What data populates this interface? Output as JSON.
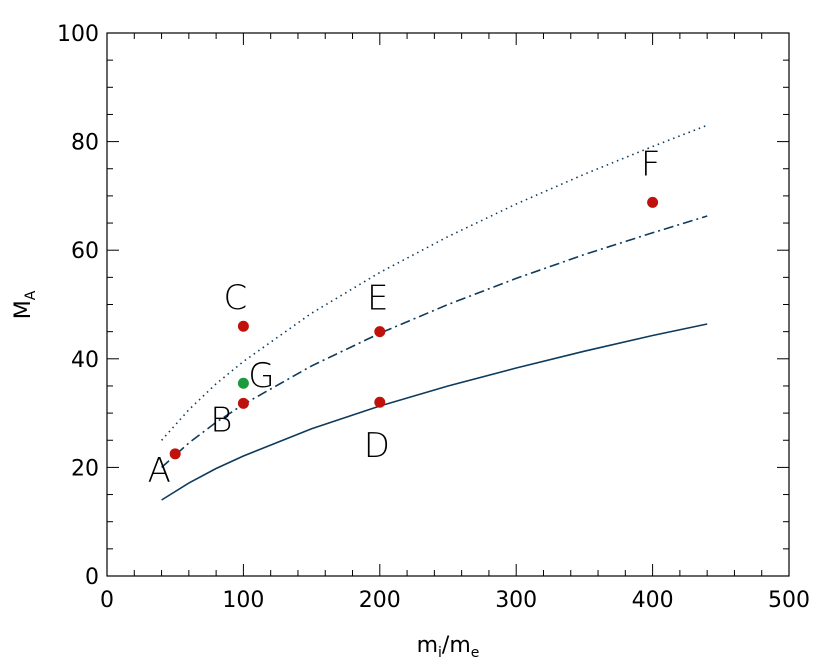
{
  "chart_data": {
    "type": "scatter",
    "title": "",
    "xlabel": {
      "base": "m",
      "sub": "i",
      "sep": "/",
      "base2": "m",
      "sub2": "e"
    },
    "ylabel": {
      "base": "M",
      "sub": "A"
    },
    "xlim": [
      0,
      500
    ],
    "ylim": [
      0,
      100
    ],
    "x_ticks": [
      "0",
      "100",
      "200",
      "300",
      "400",
      "500"
    ],
    "y_ticks": [
      "0",
      "20",
      "40",
      "60",
      "80",
      "100"
    ],
    "grid": false,
    "curves": [
      {
        "style": "solid",
        "color": "#0e3a5c",
        "x": [
          40,
          60,
          80,
          100,
          150,
          200,
          250,
          300,
          350,
          400,
          440
        ],
        "y": [
          14.0,
          17.1,
          19.8,
          22.1,
          27.1,
          31.3,
          35.0,
          38.3,
          41.4,
          44.3,
          46.4
        ]
      },
      {
        "style": "dashdot",
        "color": "#0e3a5c",
        "x": [
          40,
          60,
          80,
          100,
          150,
          200,
          250,
          300,
          350,
          400,
          440
        ],
        "y": [
          20.0,
          24.5,
          28.3,
          31.6,
          38.7,
          44.7,
          50.0,
          54.8,
          59.2,
          63.2,
          66.3
        ]
      },
      {
        "style": "dotted",
        "color": "#0e3a5c",
        "x": [
          40,
          60,
          80,
          100,
          150,
          200,
          250,
          300,
          350,
          400,
          440
        ],
        "y": [
          25.0,
          30.6,
          35.4,
          39.5,
          48.4,
          55.9,
          62.5,
          68.5,
          74.0,
          79.1,
          83.0
        ]
      }
    ],
    "points": [
      {
        "label": "A",
        "x": 50,
        "y": 22.5,
        "color": "#c0120c"
      },
      {
        "label": "B",
        "x": 100,
        "y": 31.8,
        "color": "#c0120c"
      },
      {
        "label": "C",
        "x": 100,
        "y": 46.0,
        "color": "#c0120c"
      },
      {
        "label": "D",
        "x": 200,
        "y": 32.0,
        "color": "#c0120c"
      },
      {
        "label": "E",
        "x": 200,
        "y": 45.0,
        "color": "#c0120c"
      },
      {
        "label": "F",
        "x": 400,
        "y": 68.8,
        "color": "#c0120c"
      },
      {
        "label": "G",
        "x": 100,
        "y": 35.5,
        "color": "#1a9a3a"
      }
    ]
  }
}
